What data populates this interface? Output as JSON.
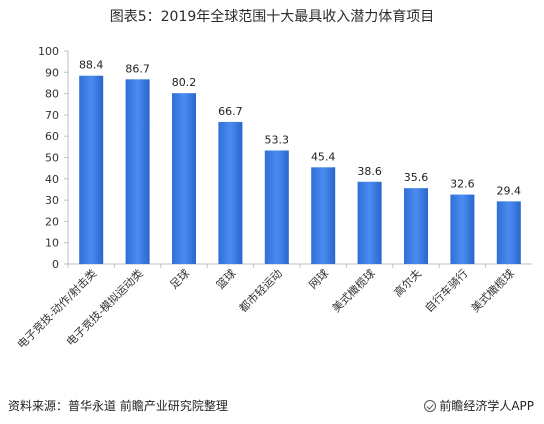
{
  "chart_data": {
    "type": "bar",
    "title": "图表5：2019年全球范围十大最具收入潜力体育项目",
    "categories": [
      "电子竞技-动作/射击类",
      "电子竞技-模拟运动类",
      "足球",
      "篮球",
      "都市轻运动",
      "网球",
      "美式橄榄球",
      "高尔夫",
      "自行车骑行",
      "美式橄榄球"
    ],
    "values": [
      88.4,
      86.7,
      80.2,
      66.7,
      53.3,
      45.4,
      38.6,
      35.6,
      32.6,
      29.4
    ],
    "value_labels": [
      "88.4",
      "86.7",
      "80.2",
      "66.7",
      "53.3",
      "45.4",
      "38.6",
      "35.6",
      "32.6",
      "29.4"
    ],
    "ylim": [
      0,
      100
    ],
    "yticks": [
      0,
      10,
      20,
      30,
      40,
      50,
      60,
      70,
      80,
      90,
      100
    ],
    "xlabel": "",
    "ylabel": "",
    "grid": false,
    "bar_color": "#3e7fe0"
  },
  "footer": {
    "source": "资料来源：普华永道 前瞻产业研究院整理",
    "brand": "前瞻经济学人APP"
  }
}
